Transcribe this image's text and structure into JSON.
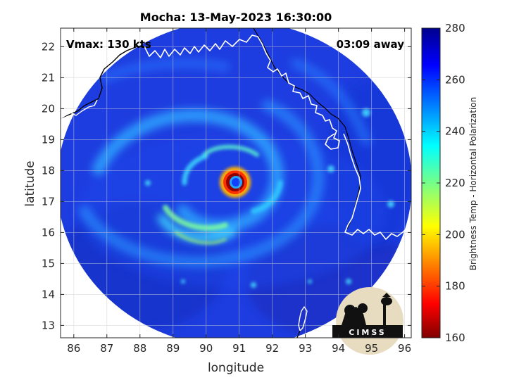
{
  "chart_data": {
    "type": "heatmap",
    "title": "Mocha: 13-May-2023 16:30:00",
    "xlabel": "longitude",
    "ylabel": "latitude",
    "xlim": [
      85.6,
      96.2
    ],
    "ylim": [
      12.6,
      22.6
    ],
    "x_ticks": [
      86,
      87,
      88,
      89,
      90,
      91,
      92,
      93,
      94,
      95,
      96
    ],
    "y_ticks": [
      13,
      14,
      15,
      16,
      17,
      18,
      19,
      20,
      21,
      22
    ],
    "grid": true,
    "colorbar": {
      "label": "Brightness Temp - Horizontal Polarization",
      "range": [
        160,
        280
      ],
      "ticks": [
        160,
        180,
        200,
        220,
        240,
        260,
        280
      ],
      "colormap": "jet"
    },
    "storm_center": {
      "lon": 90.95,
      "lat": 17.65,
      "eye_temp": 270,
      "eyewall_temp": 165
    },
    "swath_center": {
      "lon": 90.95,
      "lat": 17.65
    },
    "annotations": {
      "vmax": "Vmax: 130 kts",
      "time_offset": "03:09 away"
    },
    "colors": {
      "coastline": "#ffffff",
      "coastline_outside": "#000000",
      "background": "#ffffff"
    }
  },
  "logo": {
    "text": "CIMSS",
    "name": "cimss-logo"
  }
}
